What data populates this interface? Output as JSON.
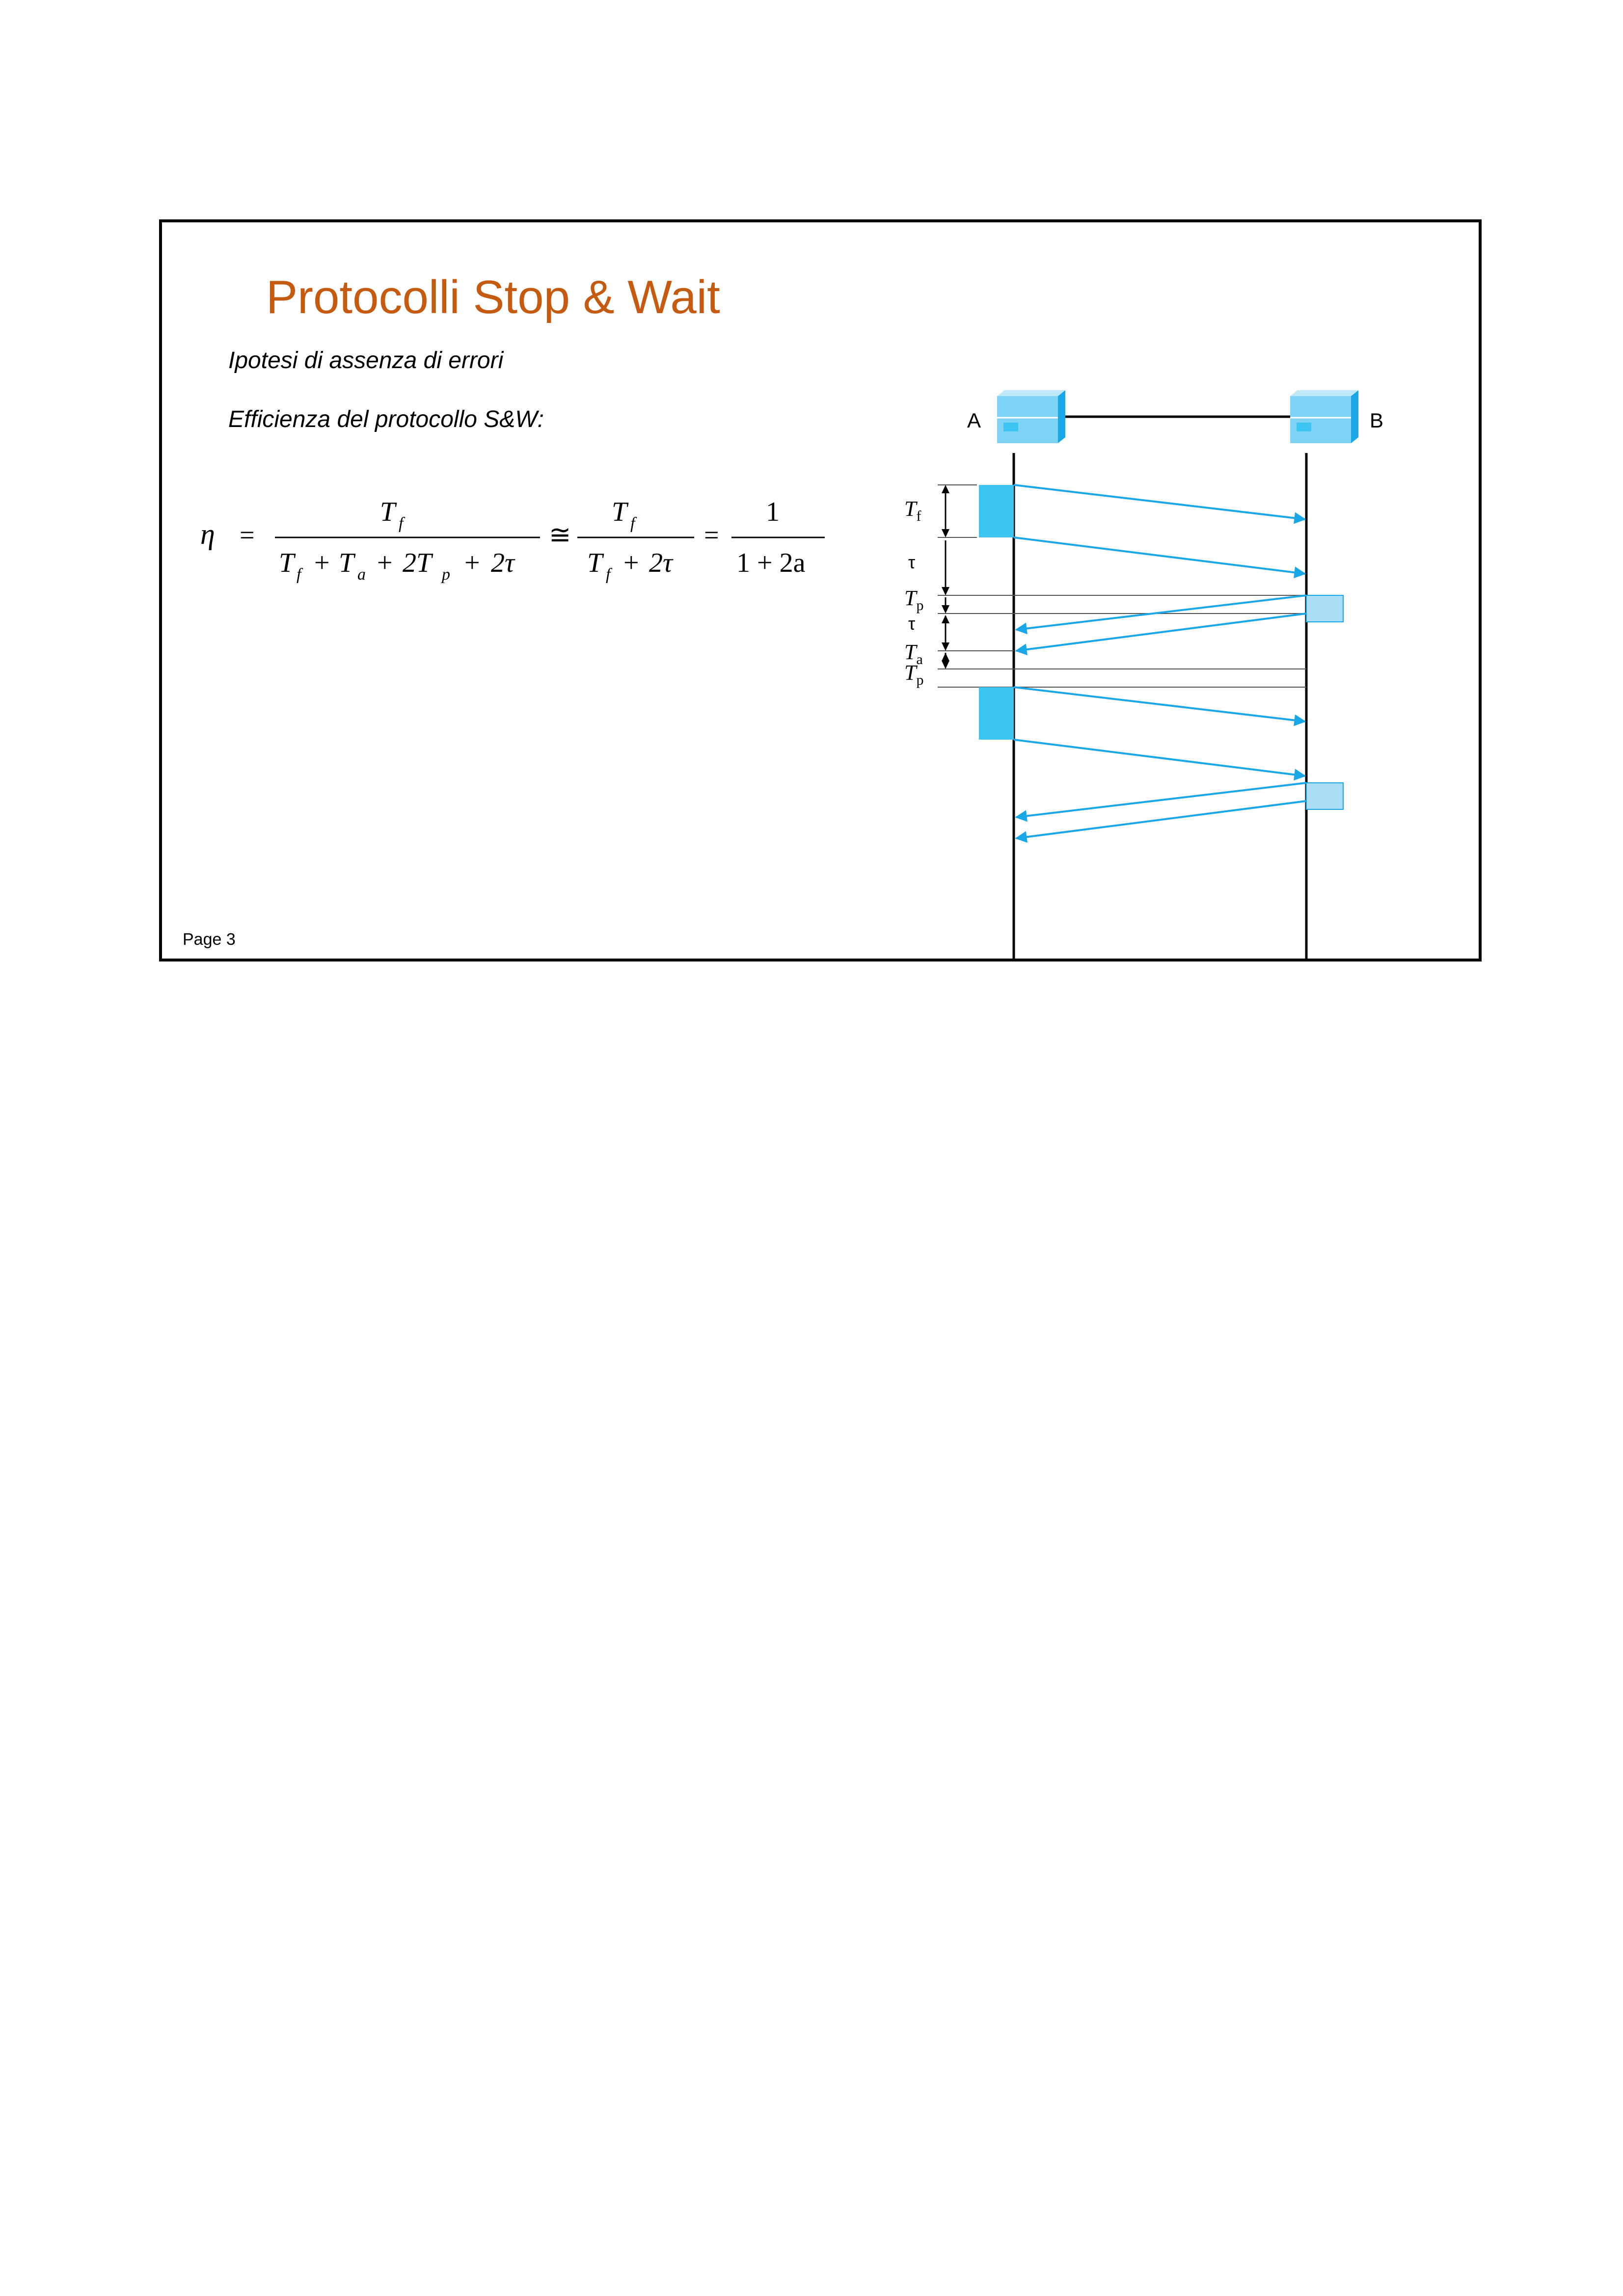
{
  "slide": {
    "title": "Protocolli Stop & Wait",
    "line1": "Ipotesi di assenza di errori",
    "line2": "Efficienza del protocollo S&W:",
    "page": "Page 3"
  },
  "formula": {
    "lhs": "η",
    "eq1": "=",
    "num1": "T",
    "num1_sub": "f",
    "den1": [
      "T",
      "f",
      "+",
      "T",
      "a",
      "+",
      "2T",
      "p",
      "+",
      "2τ"
    ],
    "approx": "≅",
    "num2": "T",
    "num2_sub": "f",
    "den2": [
      "T",
      "f",
      "+",
      "2τ"
    ],
    "eq2": "=",
    "num3": "1",
    "den3": "1 + 2a"
  },
  "diagram": {
    "station_a": "A",
    "station_b": "B",
    "labels": {
      "tf": "T",
      "tf_sub": "f",
      "tau1": "τ",
      "tp1": "T",
      "tp1_sub": "p",
      "tau2": "τ",
      "ta": "T",
      "ta_sub": "a",
      "tp2": "T",
      "tp2_sub": "p"
    },
    "colors": {
      "frame": "#3CC4F2",
      "ack": "#A8DDF5",
      "arrow": "#1AA7E8",
      "station": "#7FD3F5"
    }
  }
}
